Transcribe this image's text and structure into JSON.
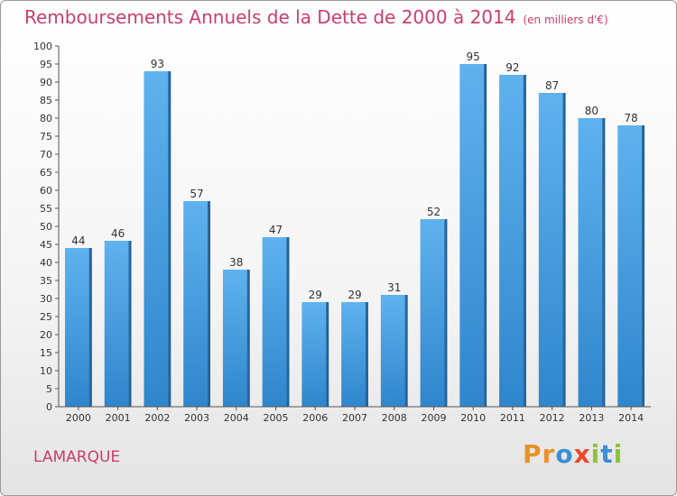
{
  "chart_data": {
    "type": "bar",
    "title": "Remboursements Annuels de la Dette de 2000 à 2014",
    "unit": "(en milliers d'€)",
    "categories": [
      "2000",
      "2001",
      "2002",
      "2003",
      "2004",
      "2005",
      "2006",
      "2007",
      "2008",
      "2009",
      "2010",
      "2011",
      "2012",
      "2013",
      "2014"
    ],
    "values": [
      44,
      46,
      93,
      57,
      38,
      47,
      29,
      29,
      31,
      52,
      95,
      92,
      87,
      80,
      78
    ],
    "xlabel": "",
    "ylabel": "",
    "ylim": [
      0,
      100
    ],
    "ytick_step": 5,
    "grid": false,
    "bar_color": "#4a9fe0"
  },
  "footer": {
    "commune": "LAMARQUE",
    "brand_letters": [
      {
        "char": "P",
        "color": "#e8912a"
      },
      {
        "char": "r",
        "color": "#e8912a"
      },
      {
        "char": "o",
        "color": "#3b8fd4"
      },
      {
        "char": "x",
        "color": "#e84a2a"
      },
      {
        "char": "i",
        "color": "#8cc43c"
      },
      {
        "char": "t",
        "color": "#3b8fd4"
      },
      {
        "char": "i",
        "color": "#8cc43c"
      }
    ]
  }
}
